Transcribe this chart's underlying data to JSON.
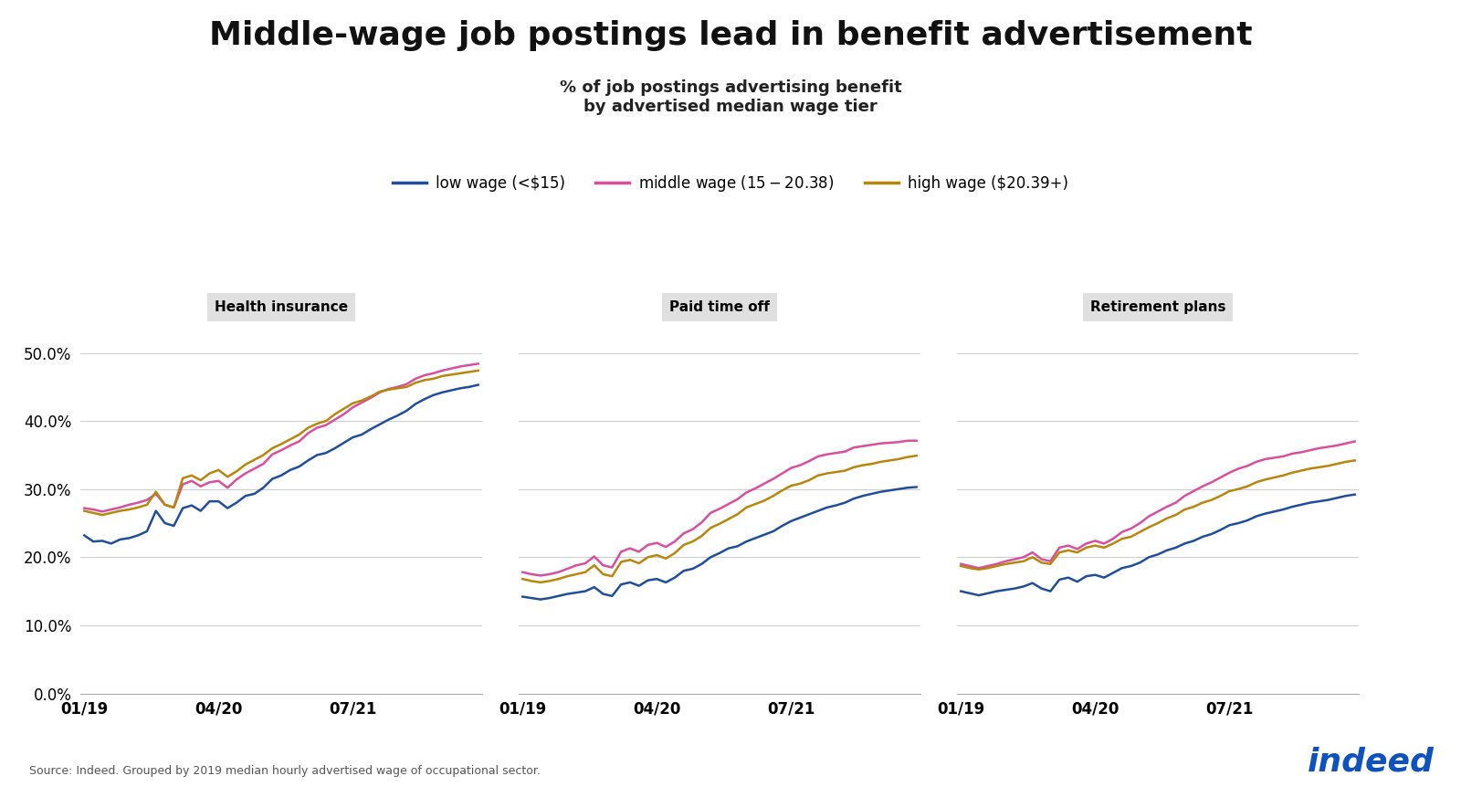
{
  "title": "Middle-wage job postings lead in benefit advertisement",
  "subtitle": "% of job postings advertising benefit\nby advertised median wage tier",
  "source": "Source: Indeed. Grouped by 2019 median hourly advertised wage of occupational sector.",
  "panels": [
    "Health insurance",
    "Paid time off",
    "Retirement plans"
  ],
  "legend_labels": [
    "low wage (<$15)",
    "middle wage ($15-$20.38)",
    "high wage ($20.39+)"
  ],
  "legend_colors": [
    "#1f4e9c",
    "#d94f9e",
    "#b8860b"
  ],
  "xlim_labels": [
    "01/19",
    "04/20",
    "07/21"
  ],
  "ylim": [
    0.0,
    0.55
  ],
  "yticks": [
    0.0,
    0.1,
    0.2,
    0.3,
    0.4,
    0.5
  ],
  "background_color": "#ffffff",
  "panel_bg_color": "#e0e0e0",
  "health_insurance": {
    "low": [
      0.232,
      0.223,
      0.224,
      0.22,
      0.226,
      0.228,
      0.232,
      0.238,
      0.268,
      0.25,
      0.246,
      0.272,
      0.276,
      0.268,
      0.282,
      0.282,
      0.272,
      0.28,
      0.29,
      0.293,
      0.302,
      0.315,
      0.32,
      0.328,
      0.333,
      0.342,
      0.35,
      0.353,
      0.36,
      0.368,
      0.376,
      0.38,
      0.388,
      0.395,
      0.402,
      0.408,
      0.415,
      0.425,
      0.432,
      0.438,
      0.442,
      0.445,
      0.448,
      0.45,
      0.453
    ],
    "middle": [
      0.272,
      0.27,
      0.267,
      0.27,
      0.273,
      0.277,
      0.28,
      0.284,
      0.293,
      0.277,
      0.273,
      0.307,
      0.312,
      0.304,
      0.31,
      0.312,
      0.302,
      0.314,
      0.323,
      0.33,
      0.337,
      0.351,
      0.357,
      0.364,
      0.37,
      0.382,
      0.39,
      0.394,
      0.402,
      0.41,
      0.42,
      0.427,
      0.434,
      0.442,
      0.447,
      0.45,
      0.454,
      0.462,
      0.467,
      0.47,
      0.474,
      0.477,
      0.48,
      0.482,
      0.484
    ],
    "high": [
      0.268,
      0.265,
      0.262,
      0.265,
      0.268,
      0.27,
      0.273,
      0.277,
      0.296,
      0.277,
      0.273,
      0.316,
      0.32,
      0.313,
      0.323,
      0.328,
      0.318,
      0.326,
      0.336,
      0.343,
      0.35,
      0.36,
      0.366,
      0.373,
      0.38,
      0.39,
      0.396,
      0.4,
      0.41,
      0.418,
      0.426,
      0.43,
      0.436,
      0.443,
      0.446,
      0.448,
      0.45,
      0.456,
      0.46,
      0.462,
      0.466,
      0.468,
      0.47,
      0.472,
      0.474
    ]
  },
  "paid_time_off": {
    "low": [
      0.142,
      0.14,
      0.138,
      0.14,
      0.143,
      0.146,
      0.148,
      0.15,
      0.156,
      0.146,
      0.143,
      0.16,
      0.163,
      0.158,
      0.166,
      0.168,
      0.163,
      0.17,
      0.18,
      0.183,
      0.19,
      0.2,
      0.206,
      0.213,
      0.216,
      0.223,
      0.228,
      0.233,
      0.238,
      0.246,
      0.253,
      0.258,
      0.263,
      0.268,
      0.273,
      0.276,
      0.28,
      0.286,
      0.29,
      0.293,
      0.296,
      0.298,
      0.3,
      0.302,
      0.303
    ],
    "middle": [
      0.178,
      0.175,
      0.173,
      0.175,
      0.178,
      0.183,
      0.188,
      0.191,
      0.201,
      0.188,
      0.185,
      0.208,
      0.213,
      0.208,
      0.218,
      0.221,
      0.215,
      0.223,
      0.235,
      0.241,
      0.251,
      0.265,
      0.271,
      0.278,
      0.285,
      0.295,
      0.301,
      0.308,
      0.315,
      0.323,
      0.331,
      0.335,
      0.341,
      0.348,
      0.351,
      0.353,
      0.355,
      0.361,
      0.363,
      0.365,
      0.367,
      0.368,
      0.369,
      0.371,
      0.371
    ],
    "high": [
      0.168,
      0.165,
      0.163,
      0.165,
      0.168,
      0.172,
      0.175,
      0.178,
      0.188,
      0.175,
      0.172,
      0.193,
      0.196,
      0.191,
      0.2,
      0.203,
      0.198,
      0.206,
      0.218,
      0.223,
      0.231,
      0.243,
      0.249,
      0.256,
      0.263,
      0.273,
      0.278,
      0.283,
      0.29,
      0.298,
      0.305,
      0.308,
      0.313,
      0.32,
      0.323,
      0.325,
      0.327,
      0.332,
      0.335,
      0.337,
      0.34,
      0.342,
      0.344,
      0.347,
      0.349
    ]
  },
  "retirement_plans": {
    "low": [
      0.15,
      0.147,
      0.144,
      0.147,
      0.15,
      0.152,
      0.154,
      0.157,
      0.162,
      0.154,
      0.15,
      0.167,
      0.17,
      0.164,
      0.172,
      0.174,
      0.17,
      0.177,
      0.184,
      0.187,
      0.192,
      0.2,
      0.204,
      0.21,
      0.214,
      0.22,
      0.224,
      0.23,
      0.234,
      0.24,
      0.247,
      0.25,
      0.254,
      0.26,
      0.264,
      0.267,
      0.27,
      0.274,
      0.277,
      0.28,
      0.282,
      0.284,
      0.287,
      0.29,
      0.292
    ],
    "middle": [
      0.19,
      0.187,
      0.184,
      0.187,
      0.19,
      0.194,
      0.197,
      0.2,
      0.207,
      0.197,
      0.194,
      0.214,
      0.217,
      0.212,
      0.22,
      0.224,
      0.22,
      0.227,
      0.237,
      0.242,
      0.25,
      0.26,
      0.267,
      0.274,
      0.28,
      0.29,
      0.297,
      0.304,
      0.31,
      0.317,
      0.324,
      0.33,
      0.334,
      0.34,
      0.344,
      0.346,
      0.348,
      0.352,
      0.354,
      0.357,
      0.36,
      0.362,
      0.364,
      0.367,
      0.37
    ],
    "high": [
      0.187,
      0.184,
      0.182,
      0.184,
      0.187,
      0.19,
      0.192,
      0.194,
      0.2,
      0.192,
      0.19,
      0.207,
      0.21,
      0.207,
      0.214,
      0.217,
      0.214,
      0.22,
      0.227,
      0.23,
      0.237,
      0.244,
      0.25,
      0.257,
      0.262,
      0.27,
      0.274,
      0.28,
      0.284,
      0.29,
      0.297,
      0.3,
      0.304,
      0.31,
      0.314,
      0.317,
      0.32,
      0.324,
      0.327,
      0.33,
      0.332,
      0.334,
      0.337,
      0.34,
      0.342
    ]
  }
}
